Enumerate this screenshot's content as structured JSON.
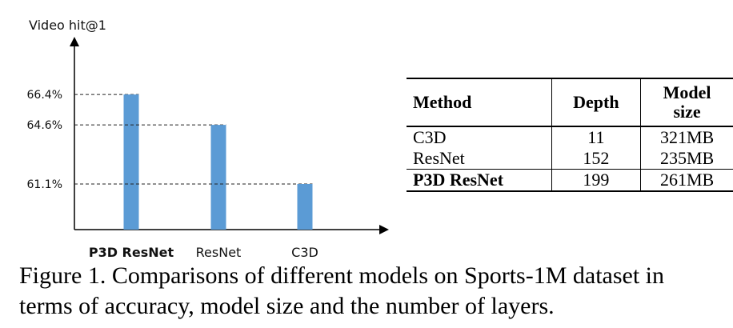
{
  "chart_data": {
    "type": "bar",
    "ylabel": "Video hit@1",
    "categories": [
      "P3D ResNet",
      "ResNet",
      "C3D"
    ],
    "values": [
      66.4,
      64.6,
      61.1
    ],
    "tick_labels": [
      "66.4%",
      "64.6%",
      "61.1%"
    ],
    "ylim": [
      58.4,
      69.2
    ],
    "bar_color": "#5b9bd5",
    "grid": false,
    "reference_lines": "dashed lines from y-axis to each bar top"
  },
  "table": {
    "headers": [
      "Method",
      "Depth",
      "Model size"
    ],
    "rows": [
      [
        "C3D",
        "11",
        "321MB"
      ],
      [
        "ResNet",
        "152",
        "235MB"
      ],
      [
        "P3D ResNet",
        "199",
        "261MB"
      ]
    ]
  },
  "caption": "Figure 1. Comparisons of different models on Sports-1M dataset in terms of accuracy, model size and the number of layers."
}
